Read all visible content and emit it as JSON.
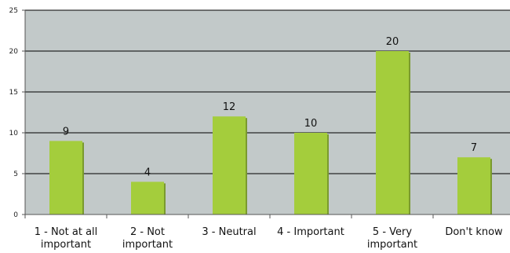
{
  "chart_data": {
    "type": "bar",
    "title": "",
    "xlabel": "",
    "ylabel": "",
    "categories": [
      [
        "1 - Not at all",
        "important"
      ],
      [
        "2 - Not",
        "important"
      ],
      [
        "3 - Neutral"
      ],
      [
        "4 - Important"
      ],
      [
        "5 - Very",
        "important"
      ],
      [
        "Don't know"
      ]
    ],
    "values": [
      9,
      4,
      12,
      10,
      20,
      7
    ],
    "ylim": [
      0,
      25
    ],
    "yticks": [
      0,
      5,
      10,
      15,
      20,
      25
    ],
    "grid": true,
    "legend": "none",
    "colors": {
      "bar": "#a4cd3c",
      "bar_shadow": "#7a9a2e",
      "plot_bg": "#c2c9c9",
      "gridline": "#000000",
      "axis": "#555555"
    }
  }
}
